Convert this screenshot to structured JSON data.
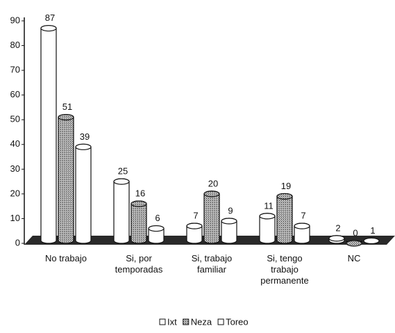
{
  "chart_data": {
    "type": "bar3d",
    "categories": [
      "No trabajo",
      "Si, por temporadas",
      "Si, trabajo familiar",
      "Si, tengo trabajo permanente",
      "NC"
    ],
    "series": [
      {
        "name": "Ixt",
        "color": "#ffffff",
        "values": [
          87,
          25,
          7,
          11,
          2
        ]
      },
      {
        "name": "Neza",
        "color": "#9a9a9a",
        "values": [
          51,
          16,
          20,
          19,
          0
        ]
      },
      {
        "name": "Toreo",
        "color": "#ffffff",
        "values": [
          39,
          6,
          9,
          7,
          1
        ]
      }
    ],
    "ylim": [
      0,
      90
    ],
    "yticks": [
      0,
      10,
      20,
      30,
      40,
      50,
      60,
      70,
      80,
      90
    ],
    "grid": false,
    "legend": "bottom"
  }
}
